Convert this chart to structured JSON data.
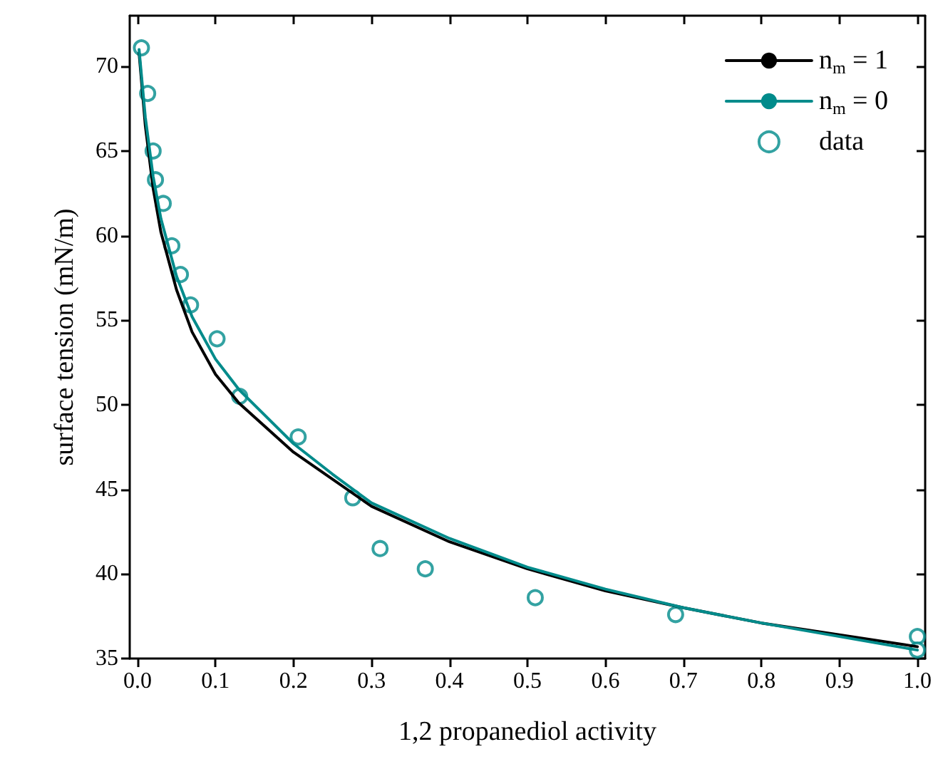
{
  "chart_data": {
    "type": "line",
    "xlabel": "1,2 propanediol activity",
    "ylabel": "surface tension (mN/m)",
    "xlim": [
      -0.01,
      1.01
    ],
    "ylim": [
      35,
      73
    ],
    "xticks": [
      {
        "value": 0,
        "label": "0.0"
      },
      {
        "value": 0.1,
        "label": "0.1"
      },
      {
        "value": 0.2,
        "label": "0.2"
      },
      {
        "value": 0.3,
        "label": "0.3"
      },
      {
        "value": 0.4,
        "label": "0.4"
      },
      {
        "value": 0.5,
        "label": "0.5"
      },
      {
        "value": 0.6,
        "label": "0.6"
      },
      {
        "value": 0.7,
        "label": "0.7"
      },
      {
        "value": 0.8,
        "label": "0.8"
      },
      {
        "value": 0.9,
        "label": "0.9"
      },
      {
        "value": 1,
        "label": "1.0"
      }
    ],
    "yticks": [
      35,
      40,
      45,
      50,
      55,
      60,
      65,
      70
    ],
    "grid": false,
    "legend": "top right",
    "series": [
      {
        "name": "n$_{m}$ = 1",
        "color": "#000000",
        "marker": "none",
        "line_style": "solid",
        "x": [
          0.002,
          0.01,
          0.02,
          0.03,
          0.05,
          0.07,
          0.1,
          0.13,
          0.2,
          0.25,
          0.3,
          0.4,
          0.5,
          0.6,
          0.7,
          0.8,
          0.9,
          1.0
        ],
        "values": [
          70.8,
          66.5,
          62.8,
          60.2,
          56.8,
          54.3,
          51.8,
          50.1,
          47.2,
          45.6,
          44.0,
          41.9,
          40.3,
          39.0,
          38.0,
          37.1,
          36.4,
          35.7
        ]
      },
      {
        "name": "n$_{m}$ = 0",
        "color": "#008b8b",
        "marker": "none",
        "line_style": "solid",
        "x": [
          0.002,
          0.01,
          0.02,
          0.03,
          0.05,
          0.07,
          0.1,
          0.13,
          0.2,
          0.25,
          0.3,
          0.4,
          0.5,
          0.6,
          0.7,
          0.8,
          0.9,
          1.0
        ],
        "values": [
          71.0,
          67.0,
          63.5,
          61.0,
          57.6,
          55.2,
          52.7,
          50.9,
          47.7,
          45.9,
          44.2,
          42.1,
          40.4,
          39.1,
          38.0,
          37.1,
          36.3,
          35.5
        ]
      },
      {
        "name": "data",
        "type": "scatter",
        "color": "#008b8b",
        "marker": "circle",
        "x": [
          0.005,
          0.013,
          0.02,
          0.023,
          0.033,
          0.044,
          0.055,
          0.068,
          0.102,
          0.131,
          0.206,
          0.276,
          0.311,
          0.369,
          0.51,
          0.69,
          1.0,
          1.0
        ],
        "values": [
          71.1,
          68.4,
          65.0,
          63.3,
          61.9,
          59.4,
          57.7,
          55.9,
          53.9,
          50.5,
          48.1,
          44.5,
          41.5,
          40.3,
          38.6,
          37.6,
          36.3,
          35.5
        ]
      }
    ]
  }
}
